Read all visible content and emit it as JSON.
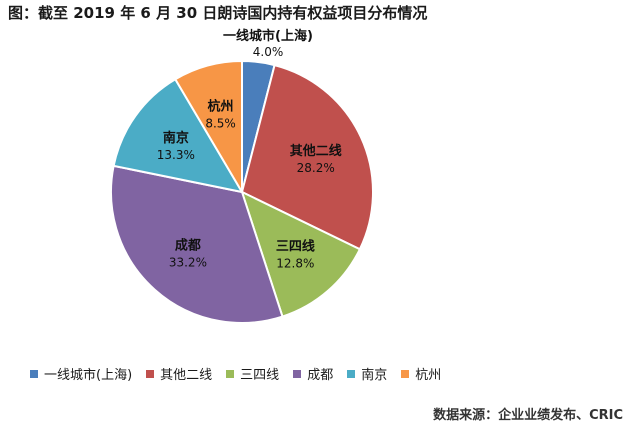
{
  "chart_data": {
    "type": "pie",
    "title": "图：截至 2019 年 6 月 30 日朗诗国内持有权益项目分布情况",
    "categories": [
      "一线城市(上海)",
      "其他二线",
      "三四线",
      "成都",
      "南京",
      "杭州"
    ],
    "values": [
      4.0,
      28.2,
      12.8,
      33.2,
      13.3,
      8.5
    ],
    "value_labels": [
      "4.0%",
      "28.2%",
      "12.8%",
      "33.2%",
      "13.3%",
      "8.5%"
    ],
    "colors": [
      "#4a7ebb",
      "#c0504d",
      "#9bbb59",
      "#8064a2",
      "#4bacc6",
      "#f79646"
    ],
    "legend": "bottom"
  },
  "source": "数据来源：企业业绩发布、CRIC"
}
